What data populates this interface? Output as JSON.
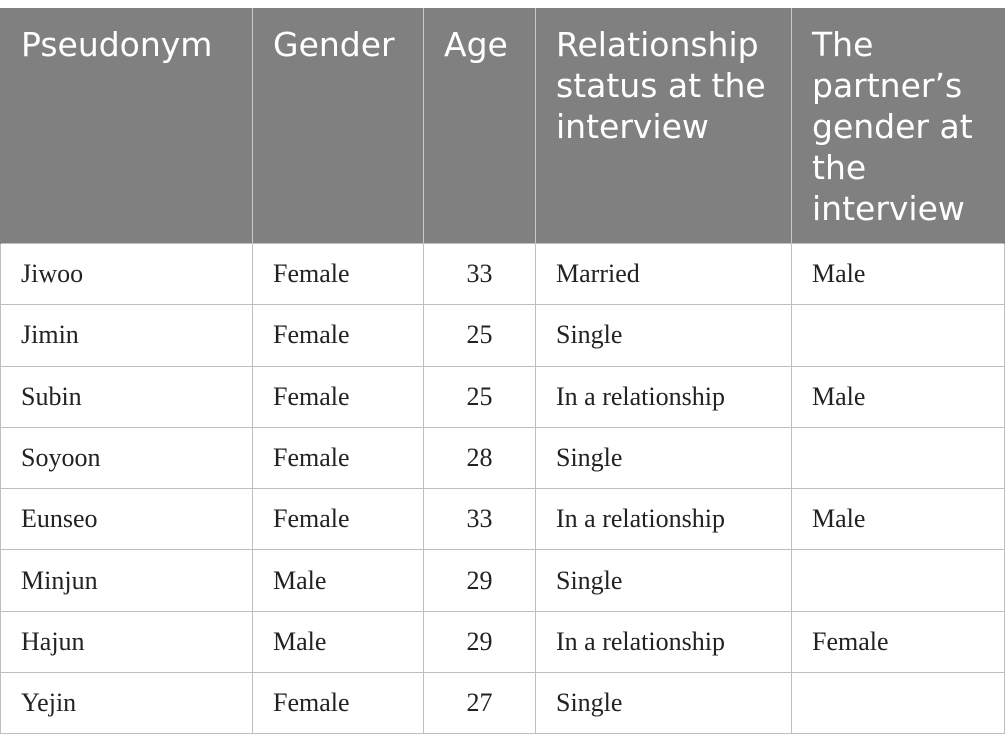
{
  "table": {
    "headers": [
      "Pseudonym",
      "Gender",
      "Age",
      "Relationship status at the interview",
      "The partner’s gender at the interview"
    ],
    "rows": [
      [
        "Jiwoo",
        "Female",
        "33",
        "Married",
        "Male"
      ],
      [
        "Jimin",
        "Female",
        "25",
        "Single",
        ""
      ],
      [
        "Subin",
        "Female",
        "25",
        "In a relationship",
        "Male"
      ],
      [
        "Soyoon",
        "Female",
        "28",
        "Single",
        ""
      ],
      [
        "Eunseo",
        "Female",
        "33",
        "In a relationship",
        "Male"
      ],
      [
        "Minjun",
        "Male",
        "29",
        "Single",
        ""
      ],
      [
        "Hajun",
        "Male",
        "29",
        "In a relationship",
        "Female"
      ],
      [
        "Yejin",
        "Female",
        "27",
        "Single",
        ""
      ]
    ]
  },
  "colors": {
    "header_bg": "#808080",
    "header_text": "#ffffff",
    "grid": "#bfbfbf"
  }
}
